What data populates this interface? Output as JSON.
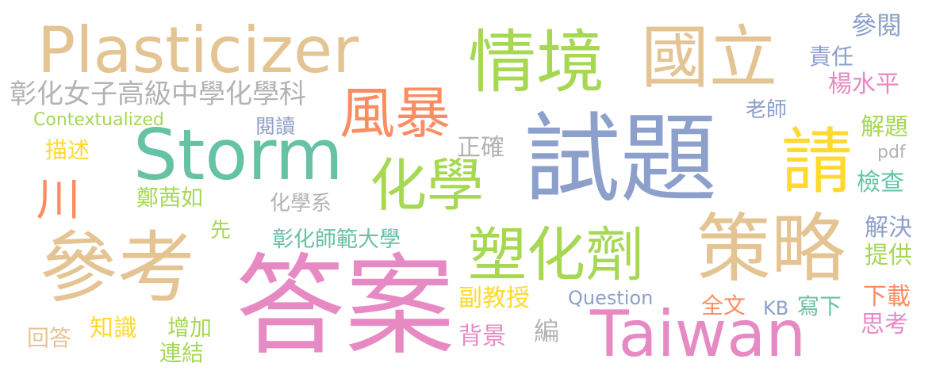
{
  "palette": {
    "tan": "#E5C494",
    "green": "#A6D854",
    "salmon": "#FC8D62",
    "teal": "#66C2A5",
    "blue": "#8DA0CB",
    "pink": "#E78AC3",
    "yellow": "#FFD92F",
    "gray": "#B3B3B3"
  },
  "words": [
    "Plasticizer",
    "情境",
    "國立",
    "試題",
    "請",
    "Storm",
    "風暴",
    "化學",
    "參考",
    "答案",
    "塑化劑",
    "策略",
    "Taiwan",
    "彰化女子高級中學化學科",
    "Contextualized",
    "描述",
    "川",
    "閱讀",
    "正確",
    "鄭茜如",
    "化學系",
    "先",
    "彰化師範大學",
    "副教授",
    "Question",
    "知識",
    "增加",
    "連結",
    "回答",
    "背景",
    "編",
    "老師",
    "參閱",
    "責任",
    "楊水平",
    "解題",
    "pdf",
    "檢查",
    "解決",
    "提供",
    "全文",
    "KB",
    "寫下",
    "下載",
    "思考"
  ]
}
